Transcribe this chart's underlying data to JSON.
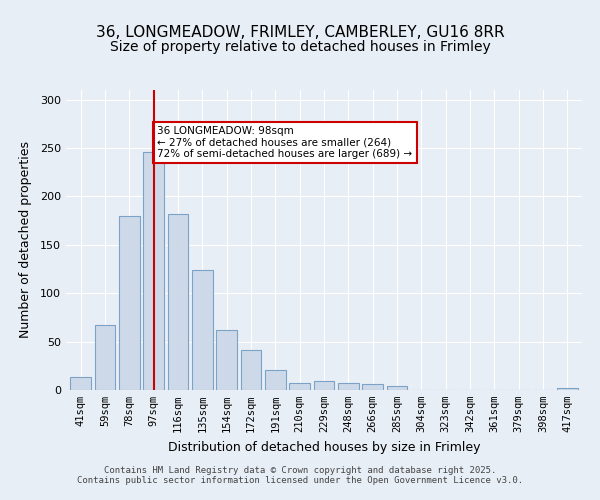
{
  "title_line1": "36, LONGMEADOW, FRIMLEY, CAMBERLEY, GU16 8RR",
  "title_line2": "Size of property relative to detached houses in Frimley",
  "xlabel": "Distribution of detached houses by size in Frimley",
  "ylabel": "Number of detached properties",
  "categories": [
    "41sqm",
    "59sqm",
    "78sqm",
    "97sqm",
    "116sqm",
    "135sqm",
    "154sqm",
    "172sqm",
    "191sqm",
    "210sqm",
    "229sqm",
    "248sqm",
    "266sqm",
    "285sqm",
    "304sqm",
    "323sqm",
    "342sqm",
    "361sqm",
    "379sqm",
    "398sqm",
    "417sqm"
  ],
  "values": [
    13,
    67,
    180,
    246,
    182,
    124,
    62,
    41,
    21,
    7,
    9,
    7,
    6,
    4,
    0,
    0,
    0,
    0,
    0,
    0,
    2
  ],
  "bar_color": "#cdd9e8",
  "bar_edge_color": "#7ba3c8",
  "highlight_bar_index": 3,
  "highlight_line_color": "#cc0000",
  "annotation_text": "36 LONGMEADOW: 98sqm\n← 27% of detached houses are smaller (264)\n72% of semi-detached houses are larger (689) →",
  "annotation_box_color": "#ffffff",
  "annotation_box_edge_color": "#cc0000",
  "ylim": [
    0,
    310
  ],
  "yticks": [
    0,
    50,
    100,
    150,
    200,
    250,
    300
  ],
  "background_color": "#e8eef5",
  "footer_text": "Contains HM Land Registry data © Crown copyright and database right 2025.\nContains public sector information licensed under the Open Government Licence v3.0.",
  "title_fontsize": 11,
  "axis_fontsize": 9,
  "tick_fontsize": 7.5
}
